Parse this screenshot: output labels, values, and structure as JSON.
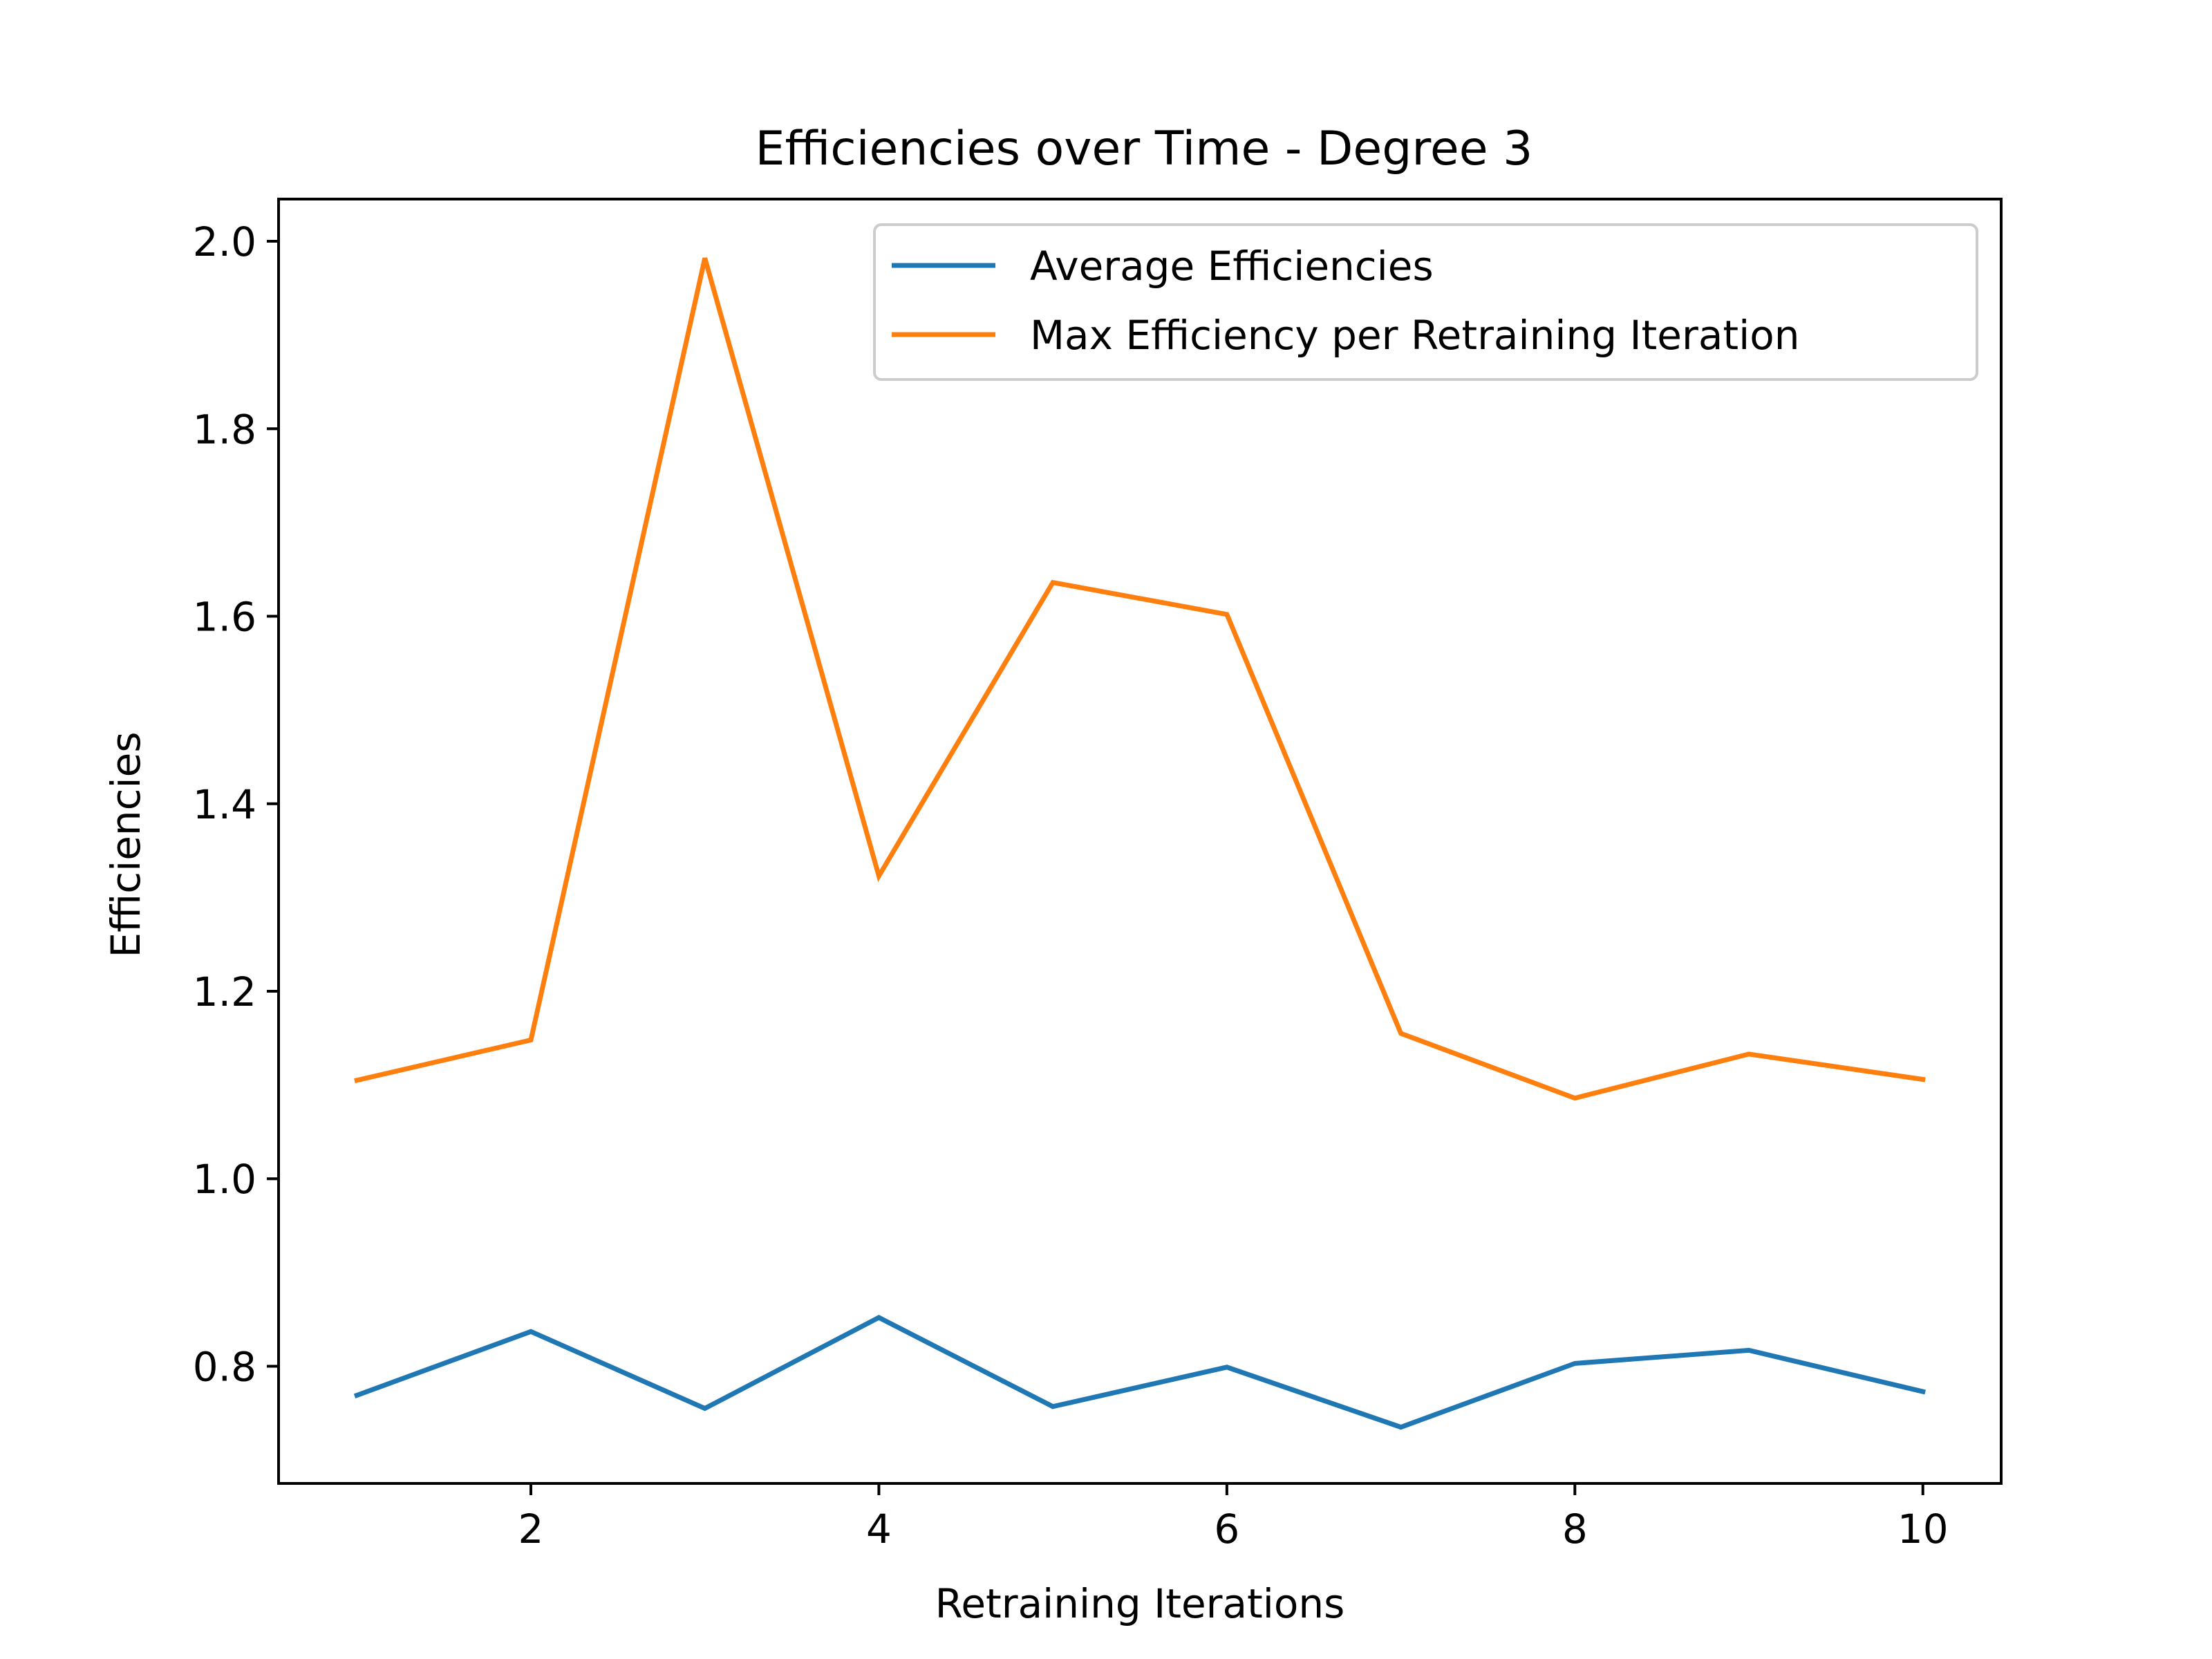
{
  "chart_data": {
    "type": "line",
    "title": "Efficiencies over Time - Degree 3",
    "xlabel": "Retraining Iterations",
    "ylabel": "Efficiencies",
    "x": [
      1,
      2,
      3,
      4,
      5,
      6,
      7,
      8,
      9,
      10
    ],
    "xlim": [
      0.55,
      10.45
    ],
    "ylim": [
      0.675,
      2.045
    ],
    "xticks": [
      2,
      4,
      6,
      8,
      10
    ],
    "xtick_labels": [
      "2",
      "4",
      "6",
      "8",
      "10"
    ],
    "yticks": [
      0.8,
      1.0,
      1.2,
      1.4,
      1.6,
      1.8,
      2.0
    ],
    "ytick_labels": [
      "0.8",
      "1.0",
      "1.2",
      "1.4",
      "1.6",
      "1.8",
      "2.0"
    ],
    "grid": false,
    "legend_position": "top-right",
    "series": [
      {
        "name": "Average Efficiencies",
        "color": "#1f77b4",
        "values": [
          0.769,
          0.837,
          0.755,
          0.852,
          0.757,
          0.799,
          0.735,
          0.803,
          0.817,
          0.773
        ]
      },
      {
        "name": "Max Efficiency per Retraining Iteration",
        "color": "#ff7f0e",
        "values": [
          1.105,
          1.148,
          1.982,
          1.323,
          1.636,
          1.602,
          1.155,
          1.086,
          1.133,
          1.106
        ]
      }
    ]
  }
}
